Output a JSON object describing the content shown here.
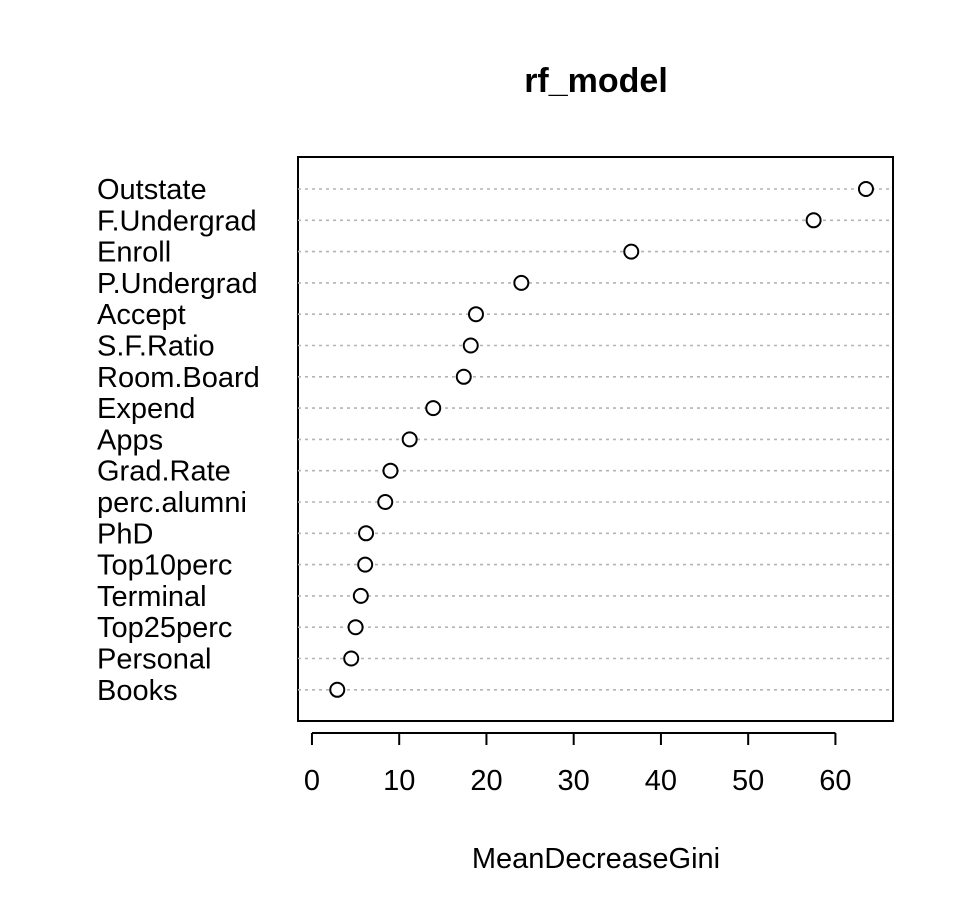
{
  "chart_data": {
    "type": "scatter",
    "title": "rf_model",
    "xlabel": "MeanDecreaseGini",
    "ylabel": "",
    "xlim": [
      -1.6,
      66.6
    ],
    "xticks": [
      0,
      10,
      20,
      30,
      40,
      50,
      60
    ],
    "grid": "dotted-horizontal",
    "categories": [
      "Outstate",
      "F.Undergrad",
      "Enroll",
      "P.Undergrad",
      "Accept",
      "S.F.Ratio",
      "Room.Board",
      "Expend",
      "Apps",
      "Grad.Rate",
      "perc.alumni",
      "PhD",
      "Top10perc",
      "Terminal",
      "Top25perc",
      "Personal",
      "Books"
    ],
    "values": [
      63.5,
      57.5,
      36.6,
      24.0,
      18.8,
      18.2,
      17.4,
      13.9,
      11.2,
      9.0,
      8.4,
      6.2,
      6.1,
      5.6,
      5.0,
      4.5,
      2.9
    ]
  }
}
